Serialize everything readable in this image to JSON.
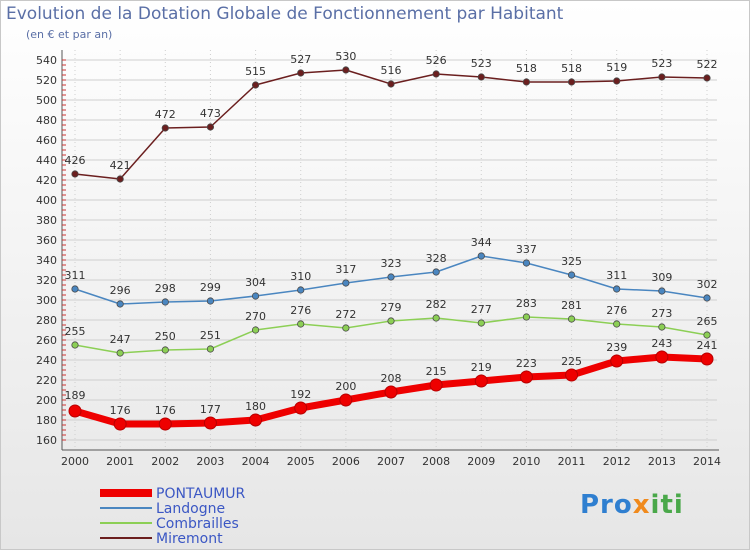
{
  "title": "Evolution de la Dotation Globale de Fonctionnement par Habitant",
  "subtitle": "(en € et par an)",
  "logo": {
    "part1": "Pro",
    "part2": "x",
    "part3": "iti"
  },
  "colors": {
    "pontaumur": "#ee0000",
    "landogne": "#4a86c0",
    "combrailles": "#8ccf55",
    "miremont": "#6b1f1f",
    "grid": "#cfcfcf"
  },
  "chart_data": {
    "type": "line",
    "title": "Evolution de la Dotation Globale de Fonctionnement par Habitant",
    "ylabel": "(en € et par an)",
    "xlabel": "",
    "ylim": [
      160,
      540
    ],
    "yticks": [
      160,
      180,
      200,
      220,
      240,
      260,
      280,
      300,
      320,
      340,
      360,
      380,
      400,
      420,
      440,
      460,
      480,
      500,
      520,
      540
    ],
    "categories": [
      "2000",
      "2001",
      "2002",
      "2003",
      "2004",
      "2005",
      "2006",
      "2007",
      "2008",
      "2009",
      "2010",
      "2011",
      "2012",
      "2013",
      "2014"
    ],
    "legend_position": "bottom-left",
    "series": [
      {
        "name": "PONTAUMUR",
        "key": "pontaumur",
        "values": [
          189,
          176,
          176,
          177,
          180,
          192,
          200,
          208,
          215,
          219,
          223,
          225,
          239,
          243,
          241
        ]
      },
      {
        "name": "Landogne",
        "key": "landogne",
        "values": [
          311,
          296,
          298,
          299,
          304,
          310,
          317,
          323,
          328,
          344,
          337,
          325,
          311,
          309,
          302
        ]
      },
      {
        "name": "Combrailles",
        "key": "combrailles",
        "values": [
          255,
          247,
          250,
          251,
          270,
          276,
          272,
          279,
          282,
          277,
          283,
          281,
          276,
          273,
          265
        ]
      },
      {
        "name": "Miremont",
        "key": "miremont",
        "values": [
          426,
          421,
          472,
          473,
          515,
          527,
          530,
          516,
          526,
          523,
          518,
          518,
          519,
          523,
          522
        ]
      }
    ]
  }
}
